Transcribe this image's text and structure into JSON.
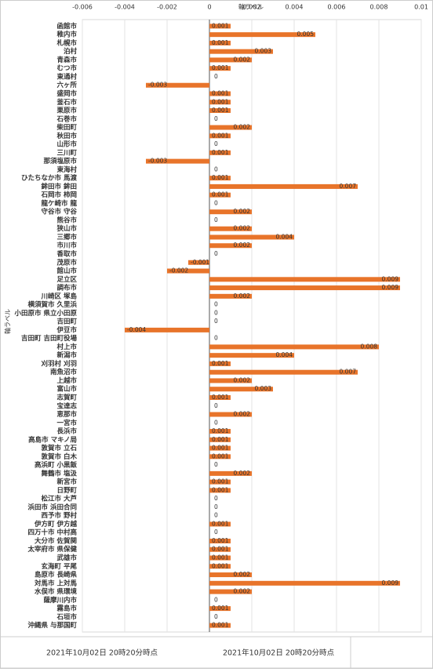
{
  "chart_data": {
    "type": "bar",
    "orientation": "horizontal",
    "x_label": "軸ラベル",
    "y_label": "軸ラベル",
    "color": "#e8742a",
    "categories": [
      "函館市",
      "稚内市",
      "札幌市",
      "泊村",
      "青森市",
      "むつ市",
      "東通村",
      "六ヶ所",
      "盛岡市",
      "釜石市",
      "栗原市",
      "石巻市",
      "柴田町",
      "秋田市",
      "山形市",
      "三川町",
      "那須塩原市",
      "東海村",
      "ひたちなか市 馬渡",
      "鉾田市 鉾田",
      "石岡市 柿岡",
      "龍ケ崎市 龍",
      "守谷市 守谷",
      "熊谷市",
      "狭山市",
      "三郷市",
      "市川市",
      "香取市",
      "茂原市",
      "館山市",
      "足立区",
      "調布市",
      "川崎区 塚島",
      "横須賀市 久里浜",
      "小田原市 県立小田原",
      "吉田町",
      "伊豆市",
      "吉田町 吉田町役場",
      "村上市",
      "新潟市",
      "刈羽村 刈羽",
      "南魚沼市",
      "上越市",
      "富山市",
      "志賀町",
      "宝達志",
      "恵那市",
      "一宮市",
      "長浜市",
      "高島市 マキノ局",
      "敦賀市 立石",
      "敦賀市 白木",
      "高浜町 小黒飯",
      "舞鶴市 塩汲",
      "新宮市",
      "日野町",
      "松江市 大芦",
      "浜田市 浜田合同",
      "西予市 野村",
      "伊方町 伊方越",
      "四万十市 中村高",
      "大分市 佐賀関",
      "太宰府市 県保健",
      "武雄市",
      "玄海町 平尾",
      "島原市 長崎県",
      "対馬市 上対馬",
      "水俣市 県環境",
      "薩摩川内市",
      "霧島市",
      "石垣市",
      "沖縄県 与那国町"
    ],
    "values": [
      0.001,
      0.005,
      0.001,
      0.003,
      0.002,
      0.001,
      0,
      -0.003,
      0.001,
      0.001,
      0.001,
      0,
      0.002,
      0.001,
      0,
      0.001,
      -0.003,
      0,
      0.001,
      0.007,
      0.001,
      0,
      0.002,
      0,
      0.002,
      0.004,
      0.002,
      0,
      -0.001,
      -0.002,
      0.009,
      0.009,
      0.002,
      0,
      0,
      0,
      -0.004,
      0,
      0.008,
      0.004,
      0.001,
      0.007,
      0.002,
      0.003,
      0.001,
      0,
      0.002,
      0,
      0.001,
      0.001,
      0.001,
      0.001,
      0,
      0.002,
      0.001,
      0.001,
      0,
      0,
      0,
      0.001,
      0,
      0.001,
      0.001,
      0.001,
      0.001,
      0.002,
      0.009,
      0.002,
      0,
      0.001,
      0,
      0.001
    ],
    "xlim": [
      -0.006,
      0.01
    ],
    "xticks": [
      -0.006,
      -0.004,
      -0.002,
      0,
      0.002,
      0.004,
      0.006,
      0.008,
      0.01
    ],
    "grid": true
  },
  "footer": {
    "cells": [
      "2021年10月02日 20時20分時点",
      "2021年10月02日 20時20分時点"
    ]
  }
}
